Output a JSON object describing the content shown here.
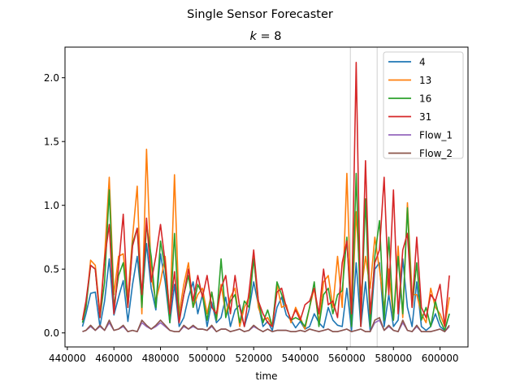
{
  "chart_data": {
    "type": "line",
    "suptitle": "Single Sensor Forecaster",
    "title_prefix": "k",
    "title_eq": " = ",
    "title_value": "8",
    "xlabel": "time",
    "ylabel": "",
    "xlim": [
      439000,
      612000
    ],
    "ylim": [
      -0.11,
      2.24
    ],
    "xticks": [
      440000,
      460000,
      480000,
      500000,
      520000,
      540000,
      560000,
      580000,
      600000
    ],
    "xtick_labels": [
      "440000",
      "460000",
      "480000",
      "500000",
      "520000",
      "540000",
      "560000",
      "580000",
      "600000"
    ],
    "yticks": [
      0.0,
      0.5,
      1.0,
      1.5,
      2.0
    ],
    "ytick_labels": [
      "0.0",
      "0.5",
      "1.0",
      "1.5",
      "2.0"
    ],
    "vlines": [
      561500,
      573000
    ],
    "vline_color": "#cfcfcf",
    "legend_position": "top-right",
    "x": [
      446500,
      448000,
      450000,
      452000,
      454000,
      456000,
      458000,
      460000,
      462000,
      464000,
      466000,
      468000,
      470000,
      472000,
      474000,
      476000,
      478000,
      480000,
      482000,
      484000,
      486000,
      488000,
      490000,
      492000,
      494000,
      496000,
      498000,
      500000,
      502000,
      504000,
      506000,
      508000,
      510000,
      512000,
      514000,
      516000,
      518000,
      520000,
      522000,
      524000,
      526000,
      528000,
      530000,
      532000,
      534000,
      536000,
      538000,
      540000,
      542000,
      544000,
      546000,
      548000,
      550000,
      552000,
      554000,
      556000,
      558000,
      560000,
      562000,
      564000,
      566000,
      568000,
      570000,
      572000,
      574000,
      576000,
      578000,
      580000,
      582000,
      584000,
      586000,
      588000,
      590000,
      592000,
      594000,
      596000,
      598000,
      600000,
      602000,
      604000
    ],
    "series": [
      {
        "name": "4",
        "color": "#1f77b4",
        "values": [
          0.05,
          0.15,
          0.31,
          0.32,
          0.05,
          0.25,
          0.58,
          0.14,
          0.28,
          0.41,
          0.09,
          0.38,
          0.6,
          0.25,
          0.7,
          0.35,
          0.18,
          0.62,
          0.4,
          0.08,
          0.38,
          0.05,
          0.12,
          0.28,
          0.4,
          0.15,
          0.3,
          0.05,
          0.24,
          0.08,
          0.12,
          0.28,
          0.05,
          0.18,
          0.22,
          0.05,
          0.18,
          0.4,
          0.22,
          0.05,
          0.09,
          0.02,
          0.2,
          0.28,
          0.14,
          0.1,
          0.04,
          0.09,
          0.03,
          0.05,
          0.15,
          0.08,
          0.04,
          0.2,
          0.1,
          0.06,
          0.05,
          0.35,
          0.02,
          0.55,
          0.05,
          0.4,
          0.02,
          0.5,
          0.55,
          0.05,
          0.3,
          0.05,
          0.1,
          0.58,
          0.2,
          0.05,
          0.4,
          0.05,
          0.02,
          0.05,
          0.15,
          0.05,
          0.02,
          0.15
        ]
      },
      {
        "name": "13",
        "color": "#ff7f0e",
        "values": [
          0.1,
          0.2,
          0.57,
          0.53,
          0.15,
          0.6,
          1.22,
          0.3,
          0.6,
          0.62,
          0.28,
          0.75,
          1.15,
          0.15,
          1.44,
          0.45,
          0.25,
          0.4,
          0.6,
          0.12,
          1.24,
          0.15,
          0.38,
          0.55,
          0.2,
          0.3,
          0.35,
          0.15,
          0.32,
          0.1,
          0.38,
          0.15,
          0.28,
          0.35,
          0.05,
          0.2,
          0.28,
          0.6,
          0.2,
          0.1,
          0.12,
          0.05,
          0.38,
          0.2,
          0.22,
          0.08,
          0.2,
          0.12,
          0.03,
          0.2,
          0.35,
          0.08,
          0.4,
          0.45,
          0.2,
          0.6,
          0.2,
          1.25,
          0.1,
          0.95,
          0.3,
          0.6,
          0.35,
          0.75,
          0.5,
          0.2,
          0.5,
          0.1,
          0.68,
          0.12,
          1.02,
          0.3,
          0.3,
          0.15,
          0.08,
          0.35,
          0.2,
          0.15,
          0.05,
          0.28
        ]
      },
      {
        "name": "16",
        "color": "#2ca02c",
        "values": [
          0.08,
          0.2,
          0.53,
          0.5,
          0.12,
          0.4,
          1.12,
          0.2,
          0.45,
          0.55,
          0.2,
          0.7,
          0.82,
          0.2,
          0.85,
          0.6,
          0.2,
          0.72,
          0.5,
          0.08,
          0.78,
          0.1,
          0.3,
          0.45,
          0.2,
          0.38,
          0.3,
          0.1,
          0.32,
          0.1,
          0.58,
          0.12,
          0.25,
          0.3,
          0.08,
          0.25,
          0.2,
          0.58,
          0.25,
          0.08,
          0.18,
          0.05,
          0.4,
          0.3,
          0.2,
          0.1,
          0.12,
          0.1,
          0.05,
          0.2,
          0.4,
          0.05,
          0.3,
          0.35,
          0.15,
          0.3,
          0.33,
          0.75,
          0.05,
          1.25,
          0.05,
          1.05,
          0.05,
          0.6,
          0.88,
          0.1,
          0.75,
          0.1,
          0.6,
          0.15,
          0.98,
          0.2,
          0.55,
          0.1,
          0.2,
          0.05,
          0.25,
          0.1,
          0.02,
          0.15
        ]
      },
      {
        "name": "31",
        "color": "#d62728",
        "values": [
          0.1,
          0.25,
          0.53,
          0.5,
          0.12,
          0.58,
          0.85,
          0.15,
          0.52,
          0.93,
          0.2,
          0.68,
          0.82,
          0.3,
          0.9,
          0.4,
          0.6,
          0.85,
          0.55,
          0.15,
          0.48,
          0.08,
          0.3,
          0.5,
          0.25,
          0.45,
          0.28,
          0.45,
          0.2,
          0.15,
          0.35,
          0.45,
          0.15,
          0.45,
          0.2,
          0.05,
          0.32,
          0.65,
          0.25,
          0.15,
          0.08,
          0.05,
          0.32,
          0.35,
          0.2,
          0.1,
          0.18,
          0.1,
          0.22,
          0.25,
          0.35,
          0.15,
          0.5,
          0.22,
          0.25,
          0.12,
          0.55,
          0.72,
          0.15,
          2.12,
          0.05,
          1.35,
          0.15,
          0.55,
          0.65,
          1.22,
          0.3,
          1.12,
          0.15,
          0.65,
          0.78,
          0.2,
          0.75,
          0.2,
          0.12,
          0.3,
          0.25,
          0.38,
          0.05,
          0.45
        ]
      },
      {
        "name": "Flow_1",
        "color": "#9467bd",
        "values": [
          0.01,
          0.02,
          0.05,
          0.02,
          0.05,
          0.02,
          0.08,
          0.02,
          0.03,
          0.05,
          0.01,
          0.02,
          0.01,
          0.08,
          0.05,
          0.03,
          0.05,
          0.08,
          0.05,
          0.02,
          0.01,
          0.01,
          0.05,
          0.03,
          0.05,
          0.03,
          0.03,
          0.02,
          0.05,
          0.01,
          0.03,
          0.03,
          0.01,
          0.02,
          0.03,
          0.01,
          0.02,
          0.05,
          0.03,
          0.01,
          0.03,
          0.01,
          0.02,
          0.02,
          0.02,
          0.01,
          0.01,
          0.02,
          0.01,
          0.03,
          0.02,
          0.01,
          0.02,
          0.03,
          0.01,
          0.01,
          0.02,
          0.03,
          0.01,
          0.02,
          0.03,
          0.01,
          0.01,
          0.08,
          0.1,
          0.02,
          0.05,
          0.02,
          0.01,
          0.08,
          0.02,
          0.01,
          0.05,
          0.01,
          0.01,
          0.01,
          0.02,
          0.03,
          0.01,
          0.05
        ]
      },
      {
        "name": "Flow_2",
        "color": "#8c564b",
        "values": [
          0.01,
          0.02,
          0.06,
          0.02,
          0.06,
          0.02,
          0.1,
          0.02,
          0.03,
          0.06,
          0.01,
          0.02,
          0.01,
          0.1,
          0.06,
          0.03,
          0.06,
          0.1,
          0.06,
          0.02,
          0.01,
          0.01,
          0.06,
          0.03,
          0.06,
          0.03,
          0.03,
          0.02,
          0.06,
          0.01,
          0.03,
          0.03,
          0.01,
          0.02,
          0.03,
          0.01,
          0.02,
          0.06,
          0.03,
          0.01,
          0.03,
          0.01,
          0.02,
          0.02,
          0.02,
          0.01,
          0.01,
          0.02,
          0.01,
          0.03,
          0.02,
          0.01,
          0.02,
          0.03,
          0.01,
          0.01,
          0.02,
          0.03,
          0.01,
          0.02,
          0.03,
          0.01,
          0.01,
          0.1,
          0.12,
          0.02,
          0.06,
          0.02,
          0.01,
          0.1,
          0.02,
          0.01,
          0.06,
          0.01,
          0.01,
          0.01,
          0.02,
          0.03,
          0.01,
          0.06
        ]
      }
    ]
  }
}
